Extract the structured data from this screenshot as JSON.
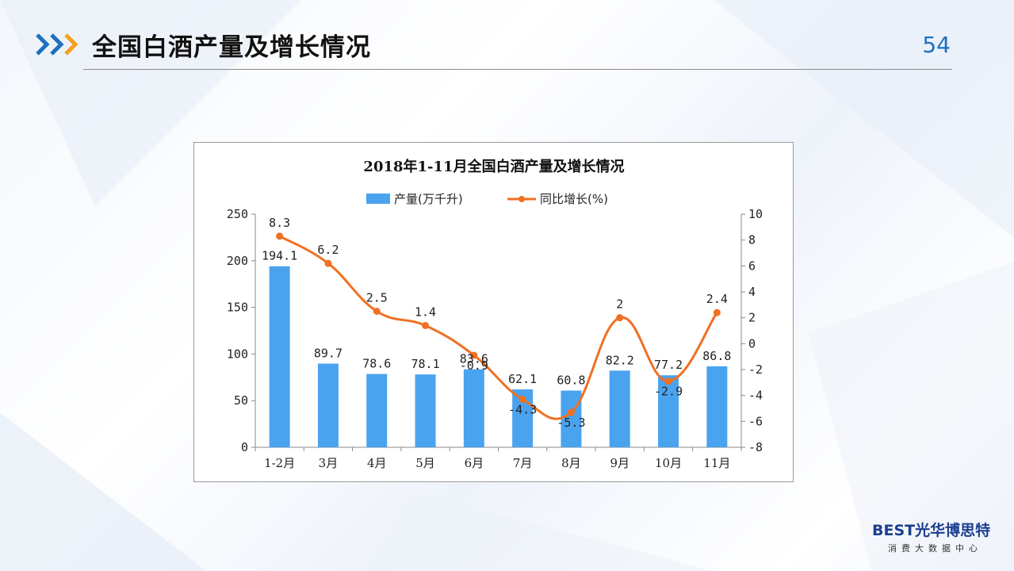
{
  "page": {
    "title": "全国白酒产量及增长情况",
    "page_number": "54"
  },
  "logo": {
    "brand": "BEST光华博思特",
    "subtitle": "消费大数据中心"
  },
  "colors": {
    "bar": "#4aa3ef",
    "line": "#f07022",
    "accent_blue": "#1f6fbf",
    "accent_orange": "#f5a020"
  },
  "chart_data": {
    "type": "bar",
    "title": "2018年1-11月全国白酒产量及增长情况",
    "categories": [
      "1-2月",
      "3月",
      "4月",
      "5月",
      "6月",
      "7月",
      "8月",
      "9月",
      "10月",
      "11月"
    ],
    "series": [
      {
        "name": "产量(万千升)",
        "type": "bar",
        "axis": "left",
        "values": [
          194.1,
          89.7,
          78.6,
          78.1,
          83.6,
          62.1,
          60.8,
          82.2,
          77.2,
          86.8
        ],
        "labels": [
          "194.1",
          "89.7",
          "78.6",
          "78.1",
          "83.6",
          "62.1",
          "60.8",
          "82.2",
          "77.2",
          "86.8"
        ]
      },
      {
        "name": "同比增长(%)",
        "type": "line",
        "axis": "right",
        "values": [
          8.3,
          6.2,
          2.5,
          1.4,
          -0.9,
          -4.3,
          -5.3,
          2,
          -2.9,
          2.4
        ],
        "labels": [
          "8.3",
          "6.2",
          "2.5",
          "1.4",
          "-0.9",
          "-4.3",
          "-5.3",
          "2",
          "-2.9",
          "2.4"
        ]
      }
    ],
    "y_left": {
      "ylim": [
        0,
        250
      ],
      "ticks": [
        "0",
        "50",
        "100",
        "150",
        "200",
        "250"
      ]
    },
    "y_right": {
      "ylim": [
        -8,
        10
      ],
      "ticks": [
        "-8",
        "-6",
        "-4",
        "-2",
        "0",
        "2",
        "4",
        "6",
        "8",
        "10"
      ]
    },
    "grid": false,
    "legend": "top-center"
  }
}
